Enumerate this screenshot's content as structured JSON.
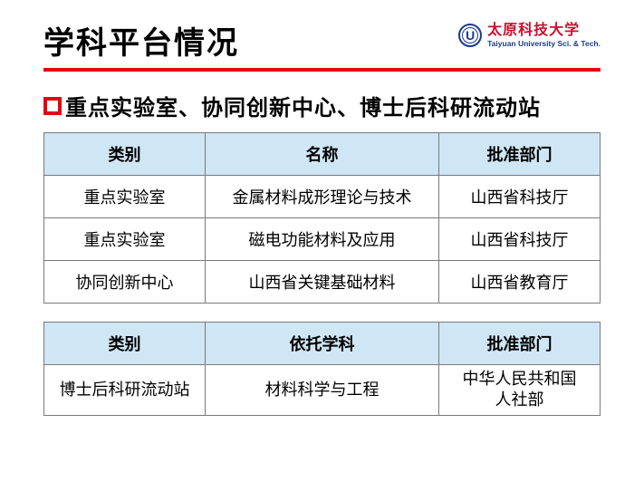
{
  "header": {
    "title": "学科平台情况",
    "logo_letter": "U",
    "univ_cn": "太原科技大学",
    "univ_en": "Taiyuan University Sci. & Tech."
  },
  "subtitle": "重点实验室、协同创新中心、博士后科研流动站",
  "colors": {
    "accent_red": "#e60012",
    "header_bg": "#cfe6f5",
    "border": "#7a7a7a",
    "logo_blue": "#1a3b8a",
    "logo_red": "#c8102e"
  },
  "table1": {
    "columns": [
      "类别",
      "名称",
      "批准部门"
    ],
    "rows": [
      [
        "重点实验室",
        "金属材料成形理论与技术",
        "山西省科技厅"
      ],
      [
        "重点实验室",
        "磁电功能材料及应用",
        "山西省科技厅"
      ],
      [
        "协同创新中心",
        "山西省关键基础材料",
        "山西省教育厅"
      ]
    ]
  },
  "table2": {
    "columns": [
      "类别",
      "依托学科",
      "批准部门"
    ],
    "rows": [
      [
        "博士后科研流动站",
        "材料科学与工程",
        "中华人民共和国人社部"
      ]
    ]
  }
}
